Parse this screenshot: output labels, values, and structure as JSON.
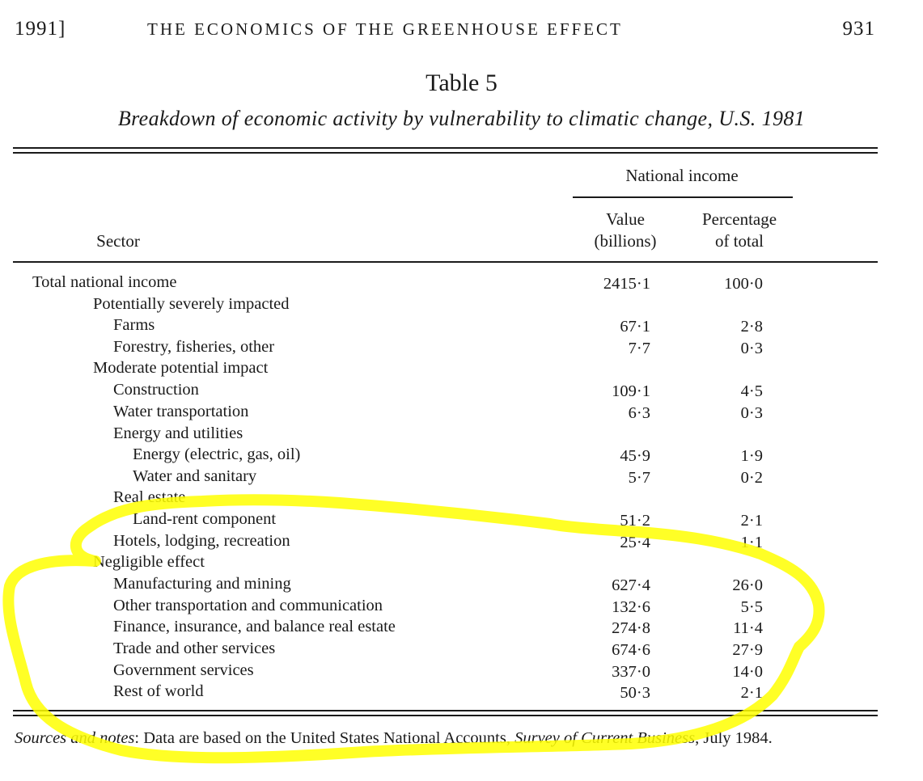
{
  "header": {
    "year": "1991]",
    "running_title": "THE ECONOMICS OF THE GREENHOUSE EFFECT",
    "page_number": "931"
  },
  "table": {
    "title": "Table 5",
    "subtitle": "Breakdown of economic activity by vulnerability to climatic change, U.S. 1981",
    "group_header": "National income",
    "col_sector": "Sector",
    "col_value_line1": "Value",
    "col_value_line2": "(billions)",
    "col_pct_line1": "Percentage",
    "col_pct_line2": "of total",
    "rows": [
      {
        "label": "Total national income",
        "value": "2415·1",
        "pct": "100·0"
      },
      {
        "label": "Potentially severely impacted",
        "value": "",
        "pct": ""
      },
      {
        "label": "Farms",
        "value": "67·1",
        "pct": "2·8"
      },
      {
        "label": "Forestry, fisheries, other",
        "value": "7·7",
        "pct": "0·3"
      },
      {
        "label": "Moderate potential impact",
        "value": "",
        "pct": ""
      },
      {
        "label": "Construction",
        "value": "109·1",
        "pct": "4·5"
      },
      {
        "label": "Water transportation",
        "value": "6·3",
        "pct": "0·3"
      },
      {
        "label": "Energy and utilities",
        "value": "",
        "pct": ""
      },
      {
        "label": "Energy (electric, gas, oil)",
        "value": "45·9",
        "pct": "1·9"
      },
      {
        "label": "Water and sanitary",
        "value": "5·7",
        "pct": "0·2"
      },
      {
        "label": "Real estate",
        "value": "",
        "pct": ""
      },
      {
        "label": "Land-rent component",
        "value": "51·2",
        "pct": "2·1"
      },
      {
        "label": "Hotels, lodging, recreation",
        "value": "25·4",
        "pct": "1·1"
      },
      {
        "label": "Negligible effect",
        "value": "",
        "pct": ""
      },
      {
        "label": "Manufacturing and mining",
        "value": "627·4",
        "pct": "26·0"
      },
      {
        "label": "Other transportation and communication",
        "value": "132·6",
        "pct": "5·5"
      },
      {
        "label": "Finance, insurance, and balance real estate",
        "value": "274·8",
        "pct": "11·4"
      },
      {
        "label": "Trade and other services",
        "value": "674·6",
        "pct": "27·9"
      },
      {
        "label": "Government services",
        "value": "337·0",
        "pct": "14·0"
      },
      {
        "label": "Rest of world",
        "value": "50·3",
        "pct": "2·1"
      }
    ]
  },
  "notes": {
    "label": "Sources and notes",
    "text_before": ": Data are based on the United States National Accounts, ",
    "journal": "Survey of Current Business",
    "text_after": ", July 1984."
  },
  "annotation": {
    "highlight_color": "#ffff00"
  }
}
